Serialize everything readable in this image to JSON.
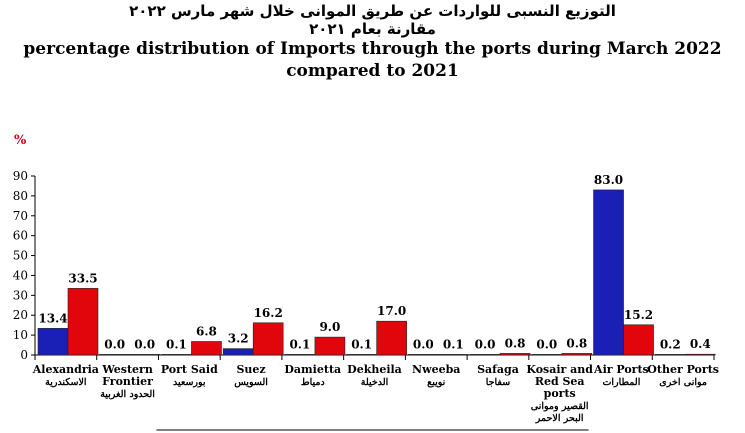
{
  "title_ar_line1": "التوزيع النسبى للواردات عن طريق الموانى خلال شهر مارس ٢٠٢٢",
  "title_ar_line2": "مقارنة بعام ٢٠٢١",
  "title_en_line1": "percentage distribution of Imports through the ports during March 2022",
  "title_en_line2": "compared to 2021",
  "chart_data": {
    "type": "bar",
    "ylabel": "%",
    "ylim": [
      0,
      90
    ],
    "yticks": [
      "0",
      "10",
      "20",
      "30",
      "40",
      "50",
      "60",
      "70",
      "80",
      "90"
    ],
    "grid": false,
    "legend": "none",
    "categories": [
      {
        "en": [
          "Alexandria"
        ],
        "ar": [
          "الاسكندرية"
        ]
      },
      {
        "en": [
          "Western",
          "Frontier"
        ],
        "ar": [
          "الحدود الغربية"
        ]
      },
      {
        "en": [
          "Port Said"
        ],
        "ar": [
          "بورسعيد"
        ]
      },
      {
        "en": [
          "Suez"
        ],
        "ar": [
          "السويس"
        ]
      },
      {
        "en": [
          "Damietta"
        ],
        "ar": [
          "دمياط"
        ]
      },
      {
        "en": [
          "Dekheila"
        ],
        "ar": [
          "الدخيلة"
        ]
      },
      {
        "en": [
          "Nweeba"
        ],
        "ar": [
          "نويبع"
        ]
      },
      {
        "en": [
          "Safaga"
        ],
        "ar": [
          "سفاجا"
        ]
      },
      {
        "en": [
          "Kosair and",
          "Red Sea",
          "ports"
        ],
        "ar": [
          "القصير وموانى",
          "البحر الاحمر"
        ]
      },
      {
        "en": [
          "Air Ports"
        ],
        "ar": [
          "المطارات"
        ]
      },
      {
        "en": [
          "Other Ports"
        ],
        "ar": [
          "موانى اخرى"
        ]
      }
    ],
    "series": [
      {
        "color": "#1a1fb5",
        "values": [
          13.4,
          0.0,
          0.1,
          3.2,
          0.1,
          0.1,
          0.0,
          0.0,
          0.0,
          83.0,
          0.2
        ],
        "labels": [
          "13.4",
          "0.0",
          "0.1",
          "3.2",
          "0.1",
          "0.1",
          "0.0",
          "0.0",
          "0.0",
          "83.0",
          "0.2"
        ]
      },
      {
        "color": "#e0060c",
        "values": [
          33.5,
          0.0,
          6.8,
          16.2,
          9.0,
          17.0,
          0.1,
          0.8,
          0.8,
          15.2,
          0.4
        ],
        "labels": [
          "33.5",
          "0.0",
          "6.8",
          "16.2",
          "9.0",
          "17.0",
          "0.1",
          "0.8",
          "0.8",
          "15.2",
          "0.4"
        ]
      }
    ]
  }
}
